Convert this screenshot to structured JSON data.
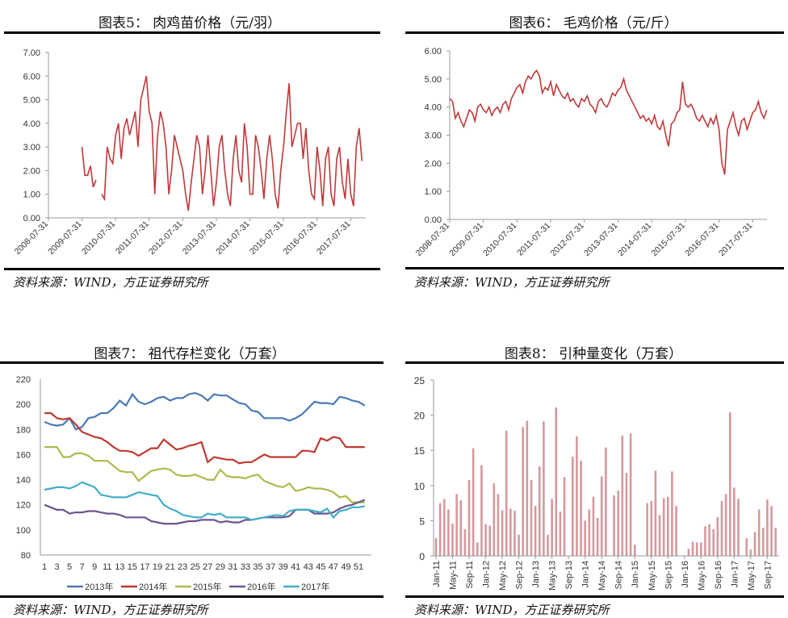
{
  "chart_data": [
    {
      "type": "line",
      "title": "图表5： 肉鸡苗价格（元/羽）",
      "source": "资料来源：WIND，方正证券研究所",
      "ylim": [
        0,
        7
      ],
      "yticks": [
        "0.00",
        "1.00",
        "2.00",
        "3.00",
        "4.00",
        "5.00",
        "6.00",
        "7.00"
      ],
      "xticks": [
        "2008-07-31",
        "2009-07-31",
        "2010-07-31",
        "2011-07-31",
        "2012-07-31",
        "2013-07-31",
        "2014-07-31",
        "2015-07-31",
        "2016-07-31",
        "2017-07-31"
      ],
      "color": "#c0393b",
      "start_month": "2009-07",
      "values": [
        3.0,
        1.8,
        1.8,
        2.2,
        1.3,
        1.6,
        null,
        1.0,
        0.8,
        3.0,
        2.5,
        2.3,
        3.5,
        4.0,
        2.5,
        3.8,
        4.2,
        3.5,
        4.0,
        4.5,
        3.0,
        5.0,
        5.5,
        6.0,
        4.5,
        4.0,
        1.0,
        3.5,
        4.5,
        4.0,
        3.0,
        1.0,
        2.0,
        3.5,
        3.0,
        2.5,
        2.0,
        1.0,
        0.3,
        1.5,
        2.5,
        3.5,
        3.0,
        1.0,
        2.0,
        3.5,
        2.0,
        0.5,
        1.5,
        3.0,
        3.5,
        2.0,
        1.0,
        0.5,
        2.5,
        3.5,
        2.0,
        1.5,
        4.0,
        3.0,
        1.0,
        1.0,
        3.5,
        3.0,
        2.0,
        0.8,
        2.5,
        3.5,
        2.5,
        1.0,
        0.4,
        2.0,
        3.0,
        4.5,
        5.7,
        3.0,
        3.5,
        4.0,
        4.0,
        2.5,
        3.8,
        2.0,
        1.0,
        0.8,
        3.0,
        2.0,
        0.5,
        2.5,
        3.0,
        1.0,
        0.5,
        2.5,
        3.0,
        1.5,
        0.8,
        2.5,
        1.0,
        0.5,
        3.0,
        3.8,
        2.4
      ]
    },
    {
      "type": "line",
      "title": "图表6： 毛鸡价格（元/斤）",
      "source": "资料来源：WIND，方正证券研究所",
      "ylim": [
        0,
        6
      ],
      "yticks": [
        "0.00",
        "1.00",
        "2.00",
        "3.00",
        "4.00",
        "5.00",
        "6.00"
      ],
      "xticks": [
        "2008-07-31",
        "2009-07-31",
        "2010-07-31",
        "2011-07-31",
        "2012-07-31",
        "2013-07-31",
        "2014-07-31",
        "2015-07-31",
        "2016-07-31",
        "2017-07-31"
      ],
      "color": "#c0393b",
      "start_month": "2008-07",
      "values": [
        4.3,
        4.2,
        3.6,
        3.8,
        3.5,
        3.3,
        3.6,
        3.9,
        3.8,
        3.5,
        4.0,
        4.1,
        3.9,
        3.8,
        4.0,
        3.7,
        3.9,
        4.0,
        3.8,
        4.1,
        4.2,
        3.9,
        4.3,
        4.5,
        4.7,
        4.8,
        4.5,
        4.9,
        5.1,
        5.0,
        5.2,
        5.3,
        5.1,
        4.5,
        4.7,
        4.6,
        4.9,
        4.4,
        4.8,
        4.6,
        4.4,
        4.3,
        4.5,
        4.2,
        4.3,
        4.1,
        4.0,
        4.3,
        4.2,
        4.4,
        4.1,
        4.0,
        3.8,
        4.2,
        4.3,
        4.1,
        4.0,
        4.2,
        4.5,
        4.4,
        4.6,
        4.7,
        5.0,
        4.6,
        4.4,
        4.2,
        4.0,
        3.8,
        3.6,
        3.7,
        3.5,
        3.6,
        3.4,
        3.7,
        3.3,
        3.2,
        3.5,
        3.0,
        2.6,
        3.4,
        3.5,
        3.8,
        3.9,
        4.9,
        4.1,
        4.0,
        4.1,
        3.9,
        3.6,
        3.5,
        3.7,
        3.5,
        3.3,
        3.6,
        3.4,
        3.7,
        3.2,
        2.0,
        1.6,
        3.2,
        3.5,
        3.8,
        3.3,
        3.0,
        3.5,
        3.6,
        3.2,
        3.5,
        3.8,
        3.9,
        4.2,
        3.8,
        3.6,
        3.9
      ]
    },
    {
      "type": "line",
      "title": "图表7： 祖代存栏变化（万套）",
      "source": "资料来源：WIND，方正证券研究所",
      "ylim": [
        80,
        220
      ],
      "yticks": [
        "80",
        "100",
        "120",
        "140",
        "160",
        "180",
        "200",
        "220"
      ],
      "xticks": [
        "1",
        "3",
        "5",
        "7",
        "9",
        "11",
        "13",
        "15",
        "17",
        "19",
        "21",
        "23",
        "25",
        "27",
        "29",
        "31",
        "33",
        "35",
        "37",
        "39",
        "41",
        "43",
        "45",
        "47",
        "49",
        "51"
      ],
      "legend_position": "bottom",
      "series": [
        {
          "name": "2013年",
          "color": "#4a7ab4",
          "values": [
            186,
            184,
            183,
            184,
            189,
            180,
            182,
            189,
            190,
            193,
            193,
            197,
            203,
            199,
            208,
            202,
            200,
            202,
            205,
            206,
            203,
            205,
            205,
            208,
            209,
            207,
            203,
            208,
            207,
            207,
            204,
            201,
            200,
            195,
            194,
            189,
            189,
            189,
            189,
            187,
            189,
            192,
            197,
            202,
            201,
            201,
            200,
            206,
            205,
            203,
            202,
            199
          ]
        },
        {
          "name": "2014年",
          "color": "#c0392f",
          "values": [
            193,
            193,
            189,
            188,
            189,
            184,
            178,
            176,
            174,
            173,
            170,
            166,
            163,
            163,
            162,
            159,
            162,
            165,
            165,
            172,
            168,
            164,
            165,
            167,
            168,
            170,
            154,
            158,
            157,
            156,
            156,
            153,
            154,
            154,
            157,
            160,
            158,
            158,
            158,
            158,
            158,
            163,
            163,
            162,
            173,
            171,
            174,
            173,
            166,
            166,
            166,
            166
          ]
        },
        {
          "name": "2015年",
          "color": "#a5be4e",
          "values": [
            166,
            166,
            166,
            158,
            158,
            161,
            161,
            159,
            155,
            155,
            155,
            151,
            147,
            146,
            146,
            139,
            143,
            147,
            148,
            149,
            148,
            144,
            143,
            143,
            144,
            142,
            140,
            140,
            148,
            143,
            142,
            142,
            141,
            143,
            144,
            139,
            137,
            135,
            134,
            137,
            131,
            132,
            134,
            133,
            133,
            132,
            130,
            126,
            127,
            122,
            122,
            122
          ]
        },
        {
          "name": "2016年",
          "color": "#6d5591",
          "values": [
            120,
            118,
            116,
            116,
            113,
            114,
            114,
            115,
            115,
            114,
            113,
            113,
            112,
            110,
            110,
            110,
            110,
            107,
            106,
            105,
            105,
            105,
            106,
            107,
            107,
            108,
            108,
            108,
            106,
            107,
            106,
            106,
            108,
            108,
            109,
            110,
            110,
            110,
            110,
            111,
            116,
            116,
            116,
            113,
            113,
            113,
            114,
            117,
            119,
            120,
            122,
            124
          ]
        },
        {
          "name": "2017年",
          "color": "#42adc8",
          "values": [
            132,
            133,
            134,
            134,
            133,
            135,
            138,
            136,
            134,
            128,
            127,
            126,
            126,
            126,
            128,
            130,
            129,
            128,
            127,
            120,
            117,
            115,
            112,
            111,
            110,
            110,
            113,
            112,
            113,
            110,
            110,
            110,
            110,
            108,
            109,
            110,
            111,
            112,
            111,
            115,
            116,
            116,
            116,
            115,
            114,
            117,
            110,
            115,
            116,
            118,
            118,
            119
          ]
        }
      ]
    },
    {
      "type": "bar",
      "title": "图表8： 引种量变化（万套）",
      "source": "资料来源：WIND，方正证券研究所",
      "ylim": [
        0,
        25
      ],
      "yticks": [
        "0",
        "5",
        "10",
        "15",
        "20",
        "25"
      ],
      "xticks": [
        "Jan-11",
        "May-11",
        "Sep-11",
        "Jan-12",
        "May-12",
        "Sep-12",
        "Jan-13",
        "May-13",
        "Sep-13",
        "Jan-14",
        "May-14",
        "Sep-14",
        "Jan-15",
        "May-15",
        "Sep-15",
        "Jan-16",
        "May-16",
        "Sep-16",
        "Jan-17",
        "May-17",
        "Sep-17"
      ],
      "color": "#d4999c",
      "start_month": "Jan-11",
      "values": [
        2.5,
        7.5,
        8.1,
        6.6,
        4.6,
        8.8,
        7.9,
        3.8,
        10.8,
        15.3,
        1.9,
        12.9,
        4.5,
        4.3,
        10.3,
        8.8,
        6.5,
        17.8,
        6.7,
        6.4,
        3.0,
        18.3,
        19.2,
        10.8,
        7.1,
        12.7,
        19.1,
        3.0,
        8.1,
        21.1,
        6.3,
        11.2,
        0,
        14.1,
        17.0,
        13.5,
        5.0,
        6.6,
        8.4,
        5.4,
        11.3,
        15.4,
        0,
        8.6,
        9.3,
        17.1,
        11.8,
        17.4,
        1.6,
        0,
        0,
        7.5,
        7.8,
        12.1,
        5.8,
        8.2,
        8.4,
        12.0,
        7.1,
        0,
        0,
        1.0,
        2.0,
        1.9,
        1.9,
        4.2,
        4.5,
        3.8,
        5.5,
        7.8,
        8.8,
        20.4,
        9.7,
        8.1,
        0,
        2.5,
        0.9,
        3.4,
        6.6,
        4.0,
        8.0,
        7.1,
        4.0
      ]
    }
  ]
}
